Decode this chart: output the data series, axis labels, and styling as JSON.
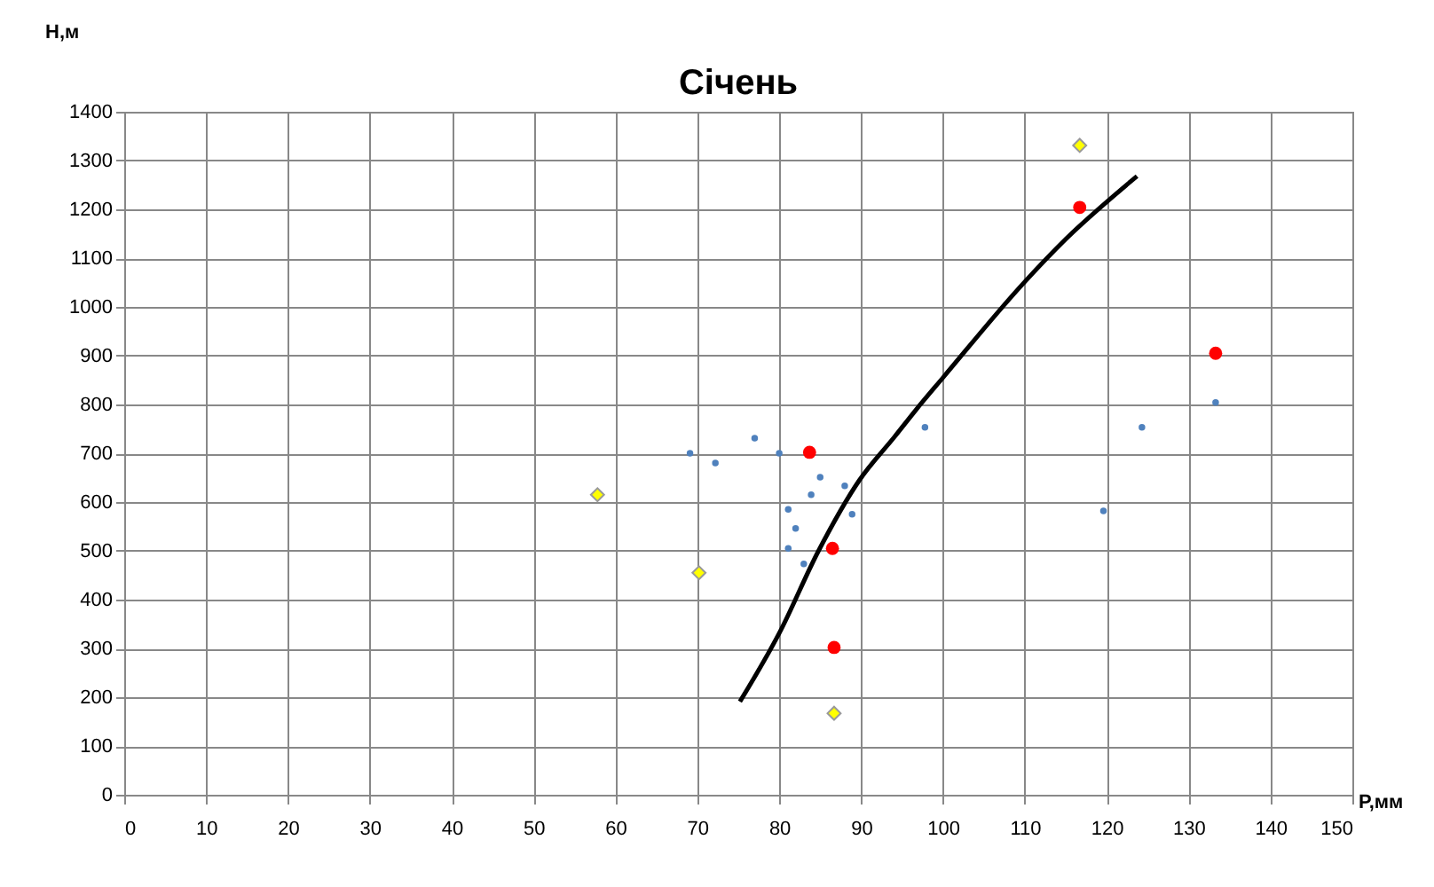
{
  "chart_data": {
    "type": "scatter",
    "title": "Січень",
    "xlabel": "Р,мм",
    "ylabel": "Н,м",
    "xlim": [
      0,
      150
    ],
    "xticks": [
      0,
      10,
      20,
      30,
      40,
      50,
      60,
      70,
      80,
      90,
      100,
      110,
      120,
      130,
      140,
      150
    ],
    "ylim": [
      0,
      1400
    ],
    "yticks": [
      0,
      100,
      200,
      300,
      400,
      500,
      600,
      700,
      800,
      900,
      {
        "value": 1000,
        "label": "1000"
      },
      {
        "value": 1100,
        "label": "1100"
      },
      {
        "value": 1200,
        "label": "1200"
      },
      {
        "value": 1300,
        "label": "1300"
      },
      {
        "value": 1400,
        "label": "1400"
      }
    ],
    "grid": true,
    "series": [
      {
        "type": "scatter",
        "marker": "circle",
        "color": "#4f81bd",
        "x": [
          69.1,
          72.2,
          77,
          80,
          85,
          88,
          83.9,
          81.1,
          88.9,
          82,
          81.1,
          83,
          97.8,
          124.3,
          133.3,
          119.6
        ],
        "values": [
          700,
          680,
          731,
          700,
          651,
          633,
          615,
          585,
          575,
          546,
          505,
          473,
          753,
          753,
          804,
          582
        ]
      },
      {
        "type": "scatter",
        "marker": "circle",
        "color": "#ff0000",
        "x": [
          83.7,
          86.5,
          86.7,
          116.7,
          133.3
        ],
        "values": [
          702,
          505,
          302,
          1204,
          905
        ]
      },
      {
        "type": "scatter",
        "marker": "diamond",
        "color": "#ffff00",
        "x": [
          57.8,
          70.2,
          86.7,
          116.7
        ],
        "values": [
          615,
          455,
          167,
          1331
        ]
      },
      {
        "type": "line",
        "marker": "none",
        "color": "#000000",
        "x": [
          75.2,
          80,
          84.8,
          89.8,
          94.1,
          96.7,
          100,
          109.8,
          115,
          123.7
        ],
        "values": [
          191,
          331,
          500,
          645,
          734,
          789,
          855,
          1048,
          1139,
          1268
        ]
      }
    ]
  }
}
